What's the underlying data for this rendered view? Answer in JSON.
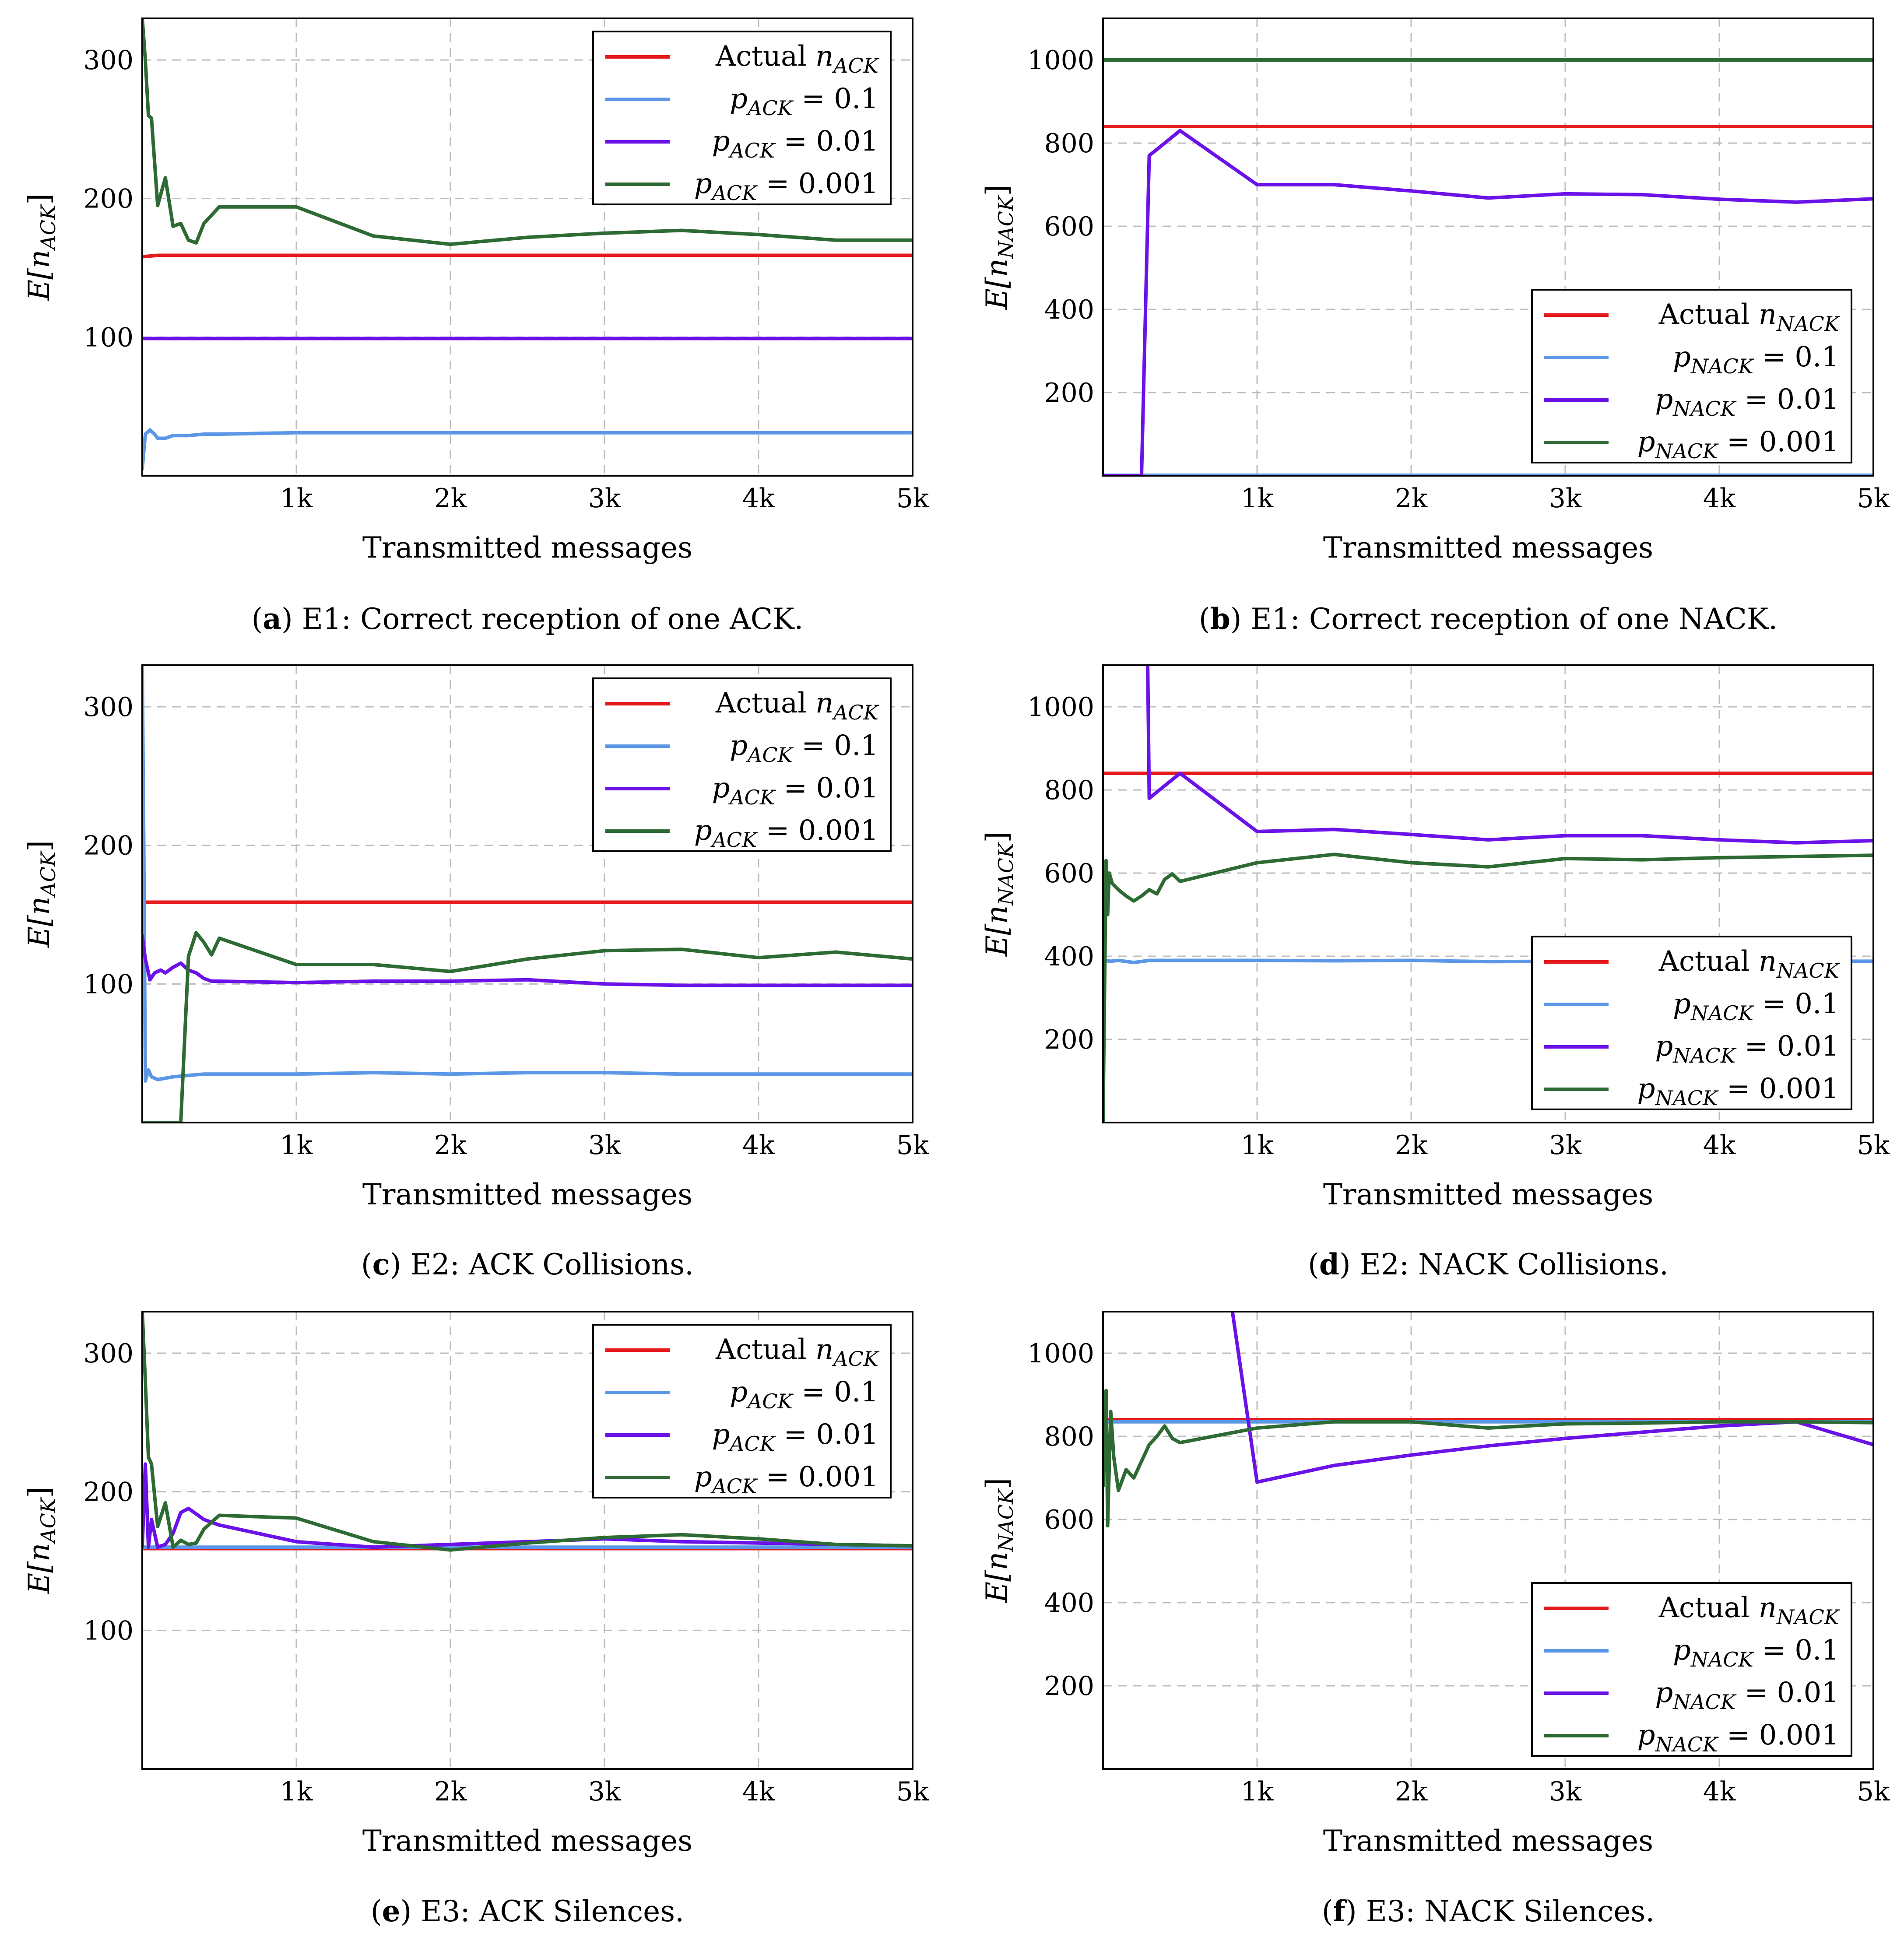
{
  "chart_data": [
    {
      "type": "line",
      "panel_id": "a",
      "caption_id": "a",
      "caption": "E1: Correct reception of one ACK.",
      "xlabel": "Transmitted messages",
      "ylabel": "E[n_ACK]",
      "ylabel_base": "E[n",
      "ylabel_sub": "ACK",
      "ylabel_close": "]",
      "xlim": [
        0,
        5000
      ],
      "ylim": [
        0,
        330
      ],
      "xticks": [
        1000,
        2000,
        3000,
        4000,
        5000
      ],
      "xtick_labels": [
        "1k",
        "2k",
        "3k",
        "4k",
        "5k"
      ],
      "yticks": [
        100,
        200,
        300
      ],
      "ytick_labels": [
        "100",
        "200",
        "300"
      ],
      "legend_position": "top-right",
      "series": [
        {
          "name": "Actual n_ACK",
          "legend_pre": "Actual ",
          "legend_var": "n",
          "legend_sub": "ACK",
          "legend_post": "",
          "color": "#e41a1c",
          "x": [
            0,
            100,
            5000
          ],
          "y": [
            158,
            159,
            159
          ]
        },
        {
          "name": "p_ACK = 0.1",
          "legend_pre": "",
          "legend_var": "p",
          "legend_sub": "ACK",
          "legend_post": " = 0.1",
          "color": "#5b97e6",
          "x": [
            0,
            20,
            50,
            80,
            100,
            150,
            200,
            300,
            400,
            500,
            1000,
            5000
          ],
          "y": [
            5,
            30,
            33,
            30,
            27,
            27,
            29,
            29,
            30,
            30,
            31,
            31
          ]
        },
        {
          "name": "p_ACK = 0.01",
          "legend_pre": "",
          "legend_var": "p",
          "legend_sub": "ACK",
          "legend_post": " = 0.01",
          "color": "#6a12e8",
          "x": [
            0,
            5000
          ],
          "y": [
            99,
            99
          ]
        },
        {
          "name": "p_ACK = 0.001",
          "legend_pre": "",
          "legend_var": "p",
          "legend_sub": "ACK",
          "legend_post": " = 0.001",
          "color": "#2e6b34",
          "x": [
            0,
            20,
            40,
            60,
            100,
            150,
            200,
            250,
            300,
            350,
            400,
            500,
            1000,
            1500,
            2000,
            2500,
            3000,
            3500,
            4000,
            4500,
            5000
          ],
          "y": [
            330,
            300,
            260,
            258,
            195,
            215,
            180,
            182,
            170,
            168,
            182,
            194,
            194,
            173,
            167,
            172,
            175,
            177,
            174,
            170,
            170
          ]
        }
      ]
    },
    {
      "type": "line",
      "panel_id": "b",
      "caption_id": "b",
      "caption": "E1: Correct reception of one NACK.",
      "xlabel": "Transmitted messages",
      "ylabel": "E[n_NACK]",
      "ylabel_base": "E[n",
      "ylabel_sub": "NACK",
      "ylabel_close": "]",
      "xlim": [
        0,
        5000
      ],
      "ylim": [
        0,
        1100
      ],
      "xticks": [
        1000,
        2000,
        3000,
        4000,
        5000
      ],
      "xtick_labels": [
        "1k",
        "2k",
        "3k",
        "4k",
        "5k"
      ],
      "yticks": [
        200,
        400,
        600,
        800,
        1000
      ],
      "ytick_labels": [
        "200",
        "400",
        "600",
        "800",
        "1000"
      ],
      "legend_position": "bottom-right",
      "series": [
        {
          "name": "Actual n_NACK",
          "legend_pre": "Actual ",
          "legend_var": "n",
          "legend_sub": "NACK",
          "legend_post": "",
          "color": "#e41a1c",
          "x": [
            0,
            5000
          ],
          "y": [
            840,
            840
          ]
        },
        {
          "name": "p_NACK = 0.1",
          "legend_pre": "",
          "legend_var": "p",
          "legend_sub": "NACK",
          "legend_post": " = 0.1",
          "color": "#5b97e6",
          "x": [
            0,
            5000
          ],
          "y": [
            1,
            1
          ]
        },
        {
          "name": "p_NACK = 0.01",
          "legend_pre": "",
          "legend_var": "p",
          "legend_sub": "NACK",
          "legend_post": " = 0.01",
          "color": "#6a12e8",
          "x": [
            0,
            250,
            300,
            500,
            1000,
            1500,
            2000,
            2500,
            3000,
            3500,
            4000,
            4500,
            5000
          ],
          "y": [
            0,
            0,
            770,
            830,
            700,
            700,
            685,
            668,
            678,
            676,
            665,
            658,
            666
          ]
        },
        {
          "name": "p_NACK = 0.001",
          "legend_pre": "",
          "legend_var": "p",
          "legend_sub": "NACK",
          "legend_post": " = 0.001",
          "color": "#2e6b34",
          "x": [
            0,
            5000
          ],
          "y": [
            1000,
            1000
          ]
        }
      ]
    },
    {
      "type": "line",
      "panel_id": "c",
      "caption_id": "c",
      "caption": "E2: ACK Collisions.",
      "xlabel": "Transmitted messages",
      "ylabel": "E[n_ACK]",
      "ylabel_base": "E[n",
      "ylabel_sub": "ACK",
      "ylabel_close": "]",
      "xlim": [
        0,
        5000
      ],
      "ylim": [
        0,
        330
      ],
      "xticks": [
        1000,
        2000,
        3000,
        4000,
        5000
      ],
      "xtick_labels": [
        "1k",
        "2k",
        "3k",
        "4k",
        "5k"
      ],
      "yticks": [
        100,
        200,
        300
      ],
      "ytick_labels": [
        "100",
        "200",
        "300"
      ],
      "legend_position": "top-right",
      "series": [
        {
          "name": "Actual n_ACK",
          "legend_pre": "Actual ",
          "legend_var": "n",
          "legend_sub": "ACK",
          "legend_post": "",
          "color": "#e41a1c",
          "x": [
            0,
            5000
          ],
          "y": [
            159,
            159
          ]
        },
        {
          "name": "p_ACK = 0.1",
          "legend_pre": "",
          "legend_var": "p",
          "legend_sub": "ACK",
          "legend_post": " = 0.1",
          "color": "#5b97e6",
          "x": [
            0,
            10,
            20,
            40,
            60,
            100,
            200,
            300,
            400,
            500,
            1000,
            1500,
            2000,
            2500,
            3000,
            3500,
            4000,
            5000
          ],
          "y": [
            330,
            200,
            30,
            38,
            33,
            31,
            33,
            34,
            35,
            35,
            35,
            36,
            35,
            36,
            36,
            35,
            35,
            35
          ]
        },
        {
          "name": "p_ACK = 0.01",
          "legend_pre": "",
          "legend_var": "p",
          "legend_sub": "ACK",
          "legend_post": " = 0.01",
          "color": "#6a12e8",
          "x": [
            0,
            20,
            50,
            80,
            120,
            150,
            200,
            250,
            300,
            350,
            400,
            450,
            500,
            1000,
            1500,
            2000,
            2500,
            3000,
            3500,
            4000,
            5000
          ],
          "y": [
            135,
            118,
            103,
            108,
            110,
            108,
            112,
            115,
            110,
            108,
            104,
            102,
            102,
            101,
            102,
            102,
            103,
            100,
            99,
            99,
            99
          ]
        },
        {
          "name": "p_ACK = 0.001",
          "legend_pre": "",
          "legend_var": "p",
          "legend_sub": "ACK",
          "legend_post": " = 0.001",
          "color": "#2e6b34",
          "x": [
            0,
            250,
            300,
            350,
            400,
            450,
            500,
            1000,
            1500,
            2000,
            2500,
            3000,
            3500,
            4000,
            4500,
            5000
          ],
          "y": [
            0,
            0,
            120,
            137,
            130,
            121,
            133,
            114,
            114,
            109,
            118,
            124,
            125,
            119,
            123,
            118
          ]
        }
      ]
    },
    {
      "type": "line",
      "panel_id": "d",
      "caption_id": "d",
      "caption": "E2: NACK Collisions.",
      "xlabel": "Transmitted messages",
      "ylabel": "E[n_NACK]",
      "ylabel_base": "E[n",
      "ylabel_sub": "NACK",
      "ylabel_close": "]",
      "xlim": [
        0,
        5000
      ],
      "ylim": [
        0,
        1100
      ],
      "xticks": [
        1000,
        2000,
        3000,
        4000,
        5000
      ],
      "xtick_labels": [
        "1k",
        "2k",
        "3k",
        "4k",
        "5k"
      ],
      "yticks": [
        200,
        400,
        600,
        800,
        1000
      ],
      "ytick_labels": [
        "200",
        "400",
        "600",
        "800",
        "1000"
      ],
      "legend_position": "bottom-right",
      "series": [
        {
          "name": "Actual n_NACK",
          "legend_pre": "Actual ",
          "legend_var": "n",
          "legend_sub": "NACK",
          "legend_post": "",
          "color": "#e41a1c",
          "x": [
            0,
            5000
          ],
          "y": [
            840,
            840
          ]
        },
        {
          "name": "p_NACK = 0.1",
          "legend_pre": "",
          "legend_var": "p",
          "legend_sub": "NACK",
          "legend_post": " = 0.1",
          "color": "#5b97e6",
          "x": [
            0,
            50,
            100,
            200,
            300,
            500,
            1000,
            1500,
            2000,
            2500,
            3000,
            5000
          ],
          "y": [
            390,
            388,
            390,
            385,
            390,
            390,
            390,
            389,
            390,
            387,
            388,
            388
          ]
        },
        {
          "name": "p_NACK = 0.01",
          "legend_pre": "",
          "legend_var": "p",
          "legend_sub": "NACK",
          "legend_post": " = 0.01",
          "color": "#6a12e8",
          "x": [
            290,
            300,
            500,
            1000,
            1500,
            2000,
            2500,
            3000,
            3500,
            4000,
            4500,
            5000
          ],
          "y": [
            1100,
            780,
            840,
            700,
            705,
            693,
            680,
            690,
            690,
            680,
            673,
            678
          ]
        },
        {
          "name": "p_NACK = 0.001",
          "legend_pre": "",
          "legend_var": "p",
          "legend_sub": "NACK",
          "legend_post": " = 0.001",
          "color": "#2e6b34",
          "x": [
            0,
            20,
            30,
            40,
            60,
            100,
            150,
            200,
            250,
            300,
            350,
            400,
            450,
            500,
            1000,
            1500,
            2000,
            2500,
            3000,
            3500,
            4000,
            4500,
            5000
          ],
          "y": [
            0,
            630,
            500,
            600,
            575,
            560,
            545,
            533,
            545,
            560,
            550,
            585,
            598,
            580,
            625,
            645,
            625,
            615,
            635,
            632,
            637,
            640,
            643
          ]
        }
      ]
    },
    {
      "type": "line",
      "panel_id": "e",
      "caption_id": "e",
      "caption": "E3: ACK Silences.",
      "xlabel": "Transmitted messages",
      "ylabel": "E[n_ACK]",
      "ylabel_base": "E[n",
      "ylabel_sub": "ACK",
      "ylabel_close": "]",
      "xlim": [
        0,
        5000
      ],
      "ylim": [
        0,
        330
      ],
      "xticks": [
        1000,
        2000,
        3000,
        4000,
        5000
      ],
      "xtick_labels": [
        "1k",
        "2k",
        "3k",
        "4k",
        "5k"
      ],
      "yticks": [
        100,
        200,
        300
      ],
      "ytick_labels": [
        "100",
        "200",
        "300"
      ],
      "legend_position": "top-right",
      "series": [
        {
          "name": "Actual n_ACK",
          "legend_pre": "Actual ",
          "legend_var": "n",
          "legend_sub": "ACK",
          "legend_post": "",
          "color": "#e41a1c",
          "x": [
            0,
            5000
          ],
          "y": [
            159,
            159
          ]
        },
        {
          "name": "p_ACK = 0.1",
          "legend_pre": "",
          "legend_var": "p",
          "legend_sub": "ACK",
          "legend_post": " = 0.1",
          "color": "#5b97e6",
          "x": [
            0,
            5000
          ],
          "y": [
            160,
            160
          ]
        },
        {
          "name": "p_ACK = 0.01",
          "legend_pre": "",
          "legend_var": "p",
          "legend_sub": "ACK",
          "legend_post": " = 0.01",
          "color": "#6a12e8",
          "x": [
            0,
            20,
            40,
            60,
            100,
            150,
            200,
            250,
            300,
            400,
            500,
            1000,
            1500,
            2000,
            2500,
            3000,
            3500,
            4000,
            4500,
            5000
          ],
          "y": [
            160,
            220,
            160,
            180,
            160,
            162,
            170,
            185,
            188,
            180,
            176,
            164,
            160,
            162,
            164,
            166,
            164,
            163,
            162,
            161
          ]
        },
        {
          "name": "p_ACK = 0.001",
          "legend_pre": "",
          "legend_var": "p",
          "legend_sub": "ACK",
          "legend_post": " = 0.001",
          "color": "#2e6b34",
          "x": [
            0,
            20,
            40,
            60,
            100,
            150,
            200,
            250,
            300,
            350,
            400,
            450,
            500,
            1000,
            1500,
            2000,
            2500,
            3000,
            3500,
            4000,
            4500,
            5000
          ],
          "y": [
            330,
            280,
            225,
            220,
            175,
            192,
            160,
            165,
            162,
            163,
            173,
            178,
            183,
            181,
            164,
            158,
            163,
            167,
            169,
            166,
            162,
            161
          ]
        }
      ]
    },
    {
      "type": "line",
      "panel_id": "f",
      "caption_id": "f",
      "caption": "E3: NACK Silences.",
      "xlabel": "Transmitted messages",
      "ylabel": "E[n_NACK]",
      "ylabel_base": "E[n",
      "ylabel_sub": "NACK",
      "ylabel_close": "]",
      "xlim": [
        0,
        5000
      ],
      "ylim": [
        0,
        1100
      ],
      "xticks": [
        1000,
        2000,
        3000,
        4000,
        5000
      ],
      "xtick_labels": [
        "1k",
        "2k",
        "3k",
        "4k",
        "5k"
      ],
      "yticks": [
        200,
        400,
        600,
        800,
        1000
      ],
      "ytick_labels": [
        "200",
        "400",
        "600",
        "800",
        "1000"
      ],
      "legend_position": "bottom-right",
      "series": [
        {
          "name": "Actual n_NACK",
          "legend_pre": "Actual ",
          "legend_var": "n",
          "legend_sub": "NACK",
          "legend_post": "",
          "color": "#e41a1c",
          "x": [
            0,
            5000
          ],
          "y": [
            840,
            840
          ]
        },
        {
          "name": "p_NACK = 0.1",
          "legend_pre": "",
          "legend_var": "p",
          "legend_sub": "NACK",
          "legend_post": " = 0.1",
          "color": "#5b97e6",
          "x": [
            0,
            5000
          ],
          "y": [
            835,
            835
          ]
        },
        {
          "name": "p_NACK = 0.01",
          "legend_pre": "",
          "legend_var": "p",
          "legend_sub": "NACK",
          "legend_post": " = 0.01",
          "color": "#6a12e8",
          "x": [
            840,
            1000,
            1500,
            2000,
            2500,
            3000,
            3500,
            4000,
            4500,
            5000
          ],
          "y": [
            1100,
            690,
            730,
            755,
            777,
            795,
            810,
            825,
            835,
            780
          ]
        },
        {
          "name": "p_NACK = 0.001",
          "legend_pre": "",
          "legend_var": "p",
          "legend_sub": "NACK",
          "legend_post": " = 0.001",
          "color": "#2e6b34",
          "x": [
            0,
            20,
            30,
            50,
            70,
            100,
            150,
            200,
            250,
            300,
            350,
            400,
            450,
            500,
            1000,
            1500,
            2000,
            2500,
            3000,
            3500,
            4000,
            4500,
            5000
          ],
          "y": [
            680,
            910,
            585,
            860,
            750,
            670,
            720,
            700,
            740,
            780,
            800,
            825,
            795,
            785,
            820,
            835,
            835,
            820,
            830,
            832,
            835,
            835,
            833
          ]
        }
      ]
    }
  ]
}
